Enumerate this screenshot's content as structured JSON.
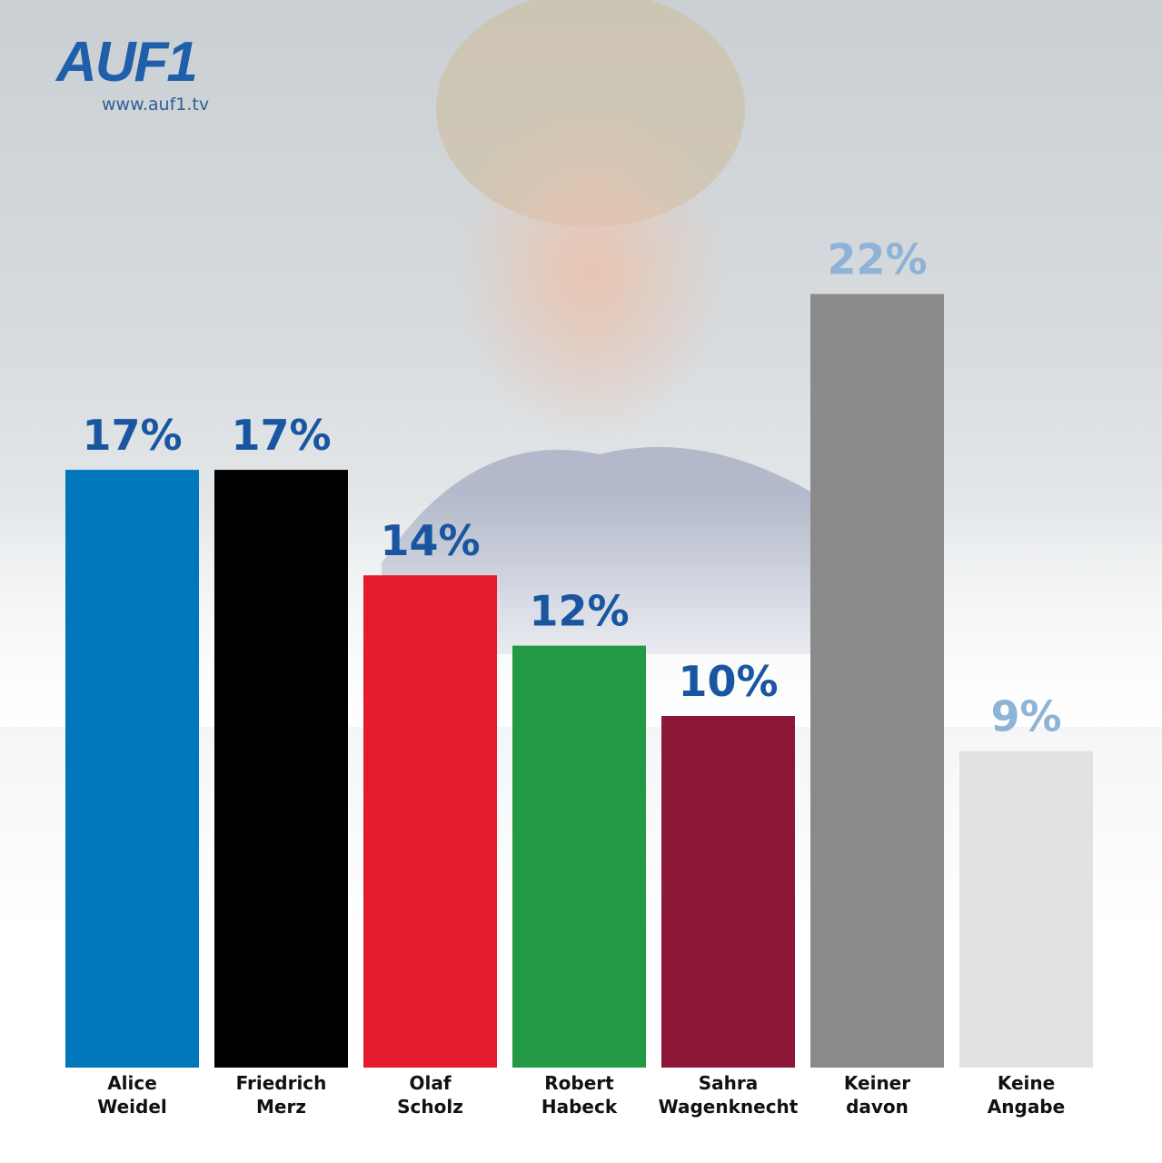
{
  "logo": {
    "brand": "AUF1",
    "url": "www.auf1.tv"
  },
  "chart_data": {
    "type": "bar",
    "categories": [
      [
        "Alice",
        "Weidel"
      ],
      [
        "Friedrich",
        "Merz"
      ],
      [
        "Olaf",
        "Scholz"
      ],
      [
        "Robert",
        "Habeck"
      ],
      [
        "Sahra",
        "Wagenknecht"
      ],
      [
        "Keiner",
        "davon"
      ],
      [
        "Keine",
        "Angabe"
      ]
    ],
    "values": [
      17,
      17,
      14,
      12,
      10,
      22,
      9
    ],
    "data_labels": [
      "17%",
      "17%",
      "14%",
      "12%",
      "10%",
      "22%",
      "9%"
    ],
    "bar_colors": [
      "#0077bb",
      "#000000",
      "#e31b2e",
      "#249a47",
      "#8d1736",
      "#8a8a8a",
      "#e2e2e2"
    ],
    "label_colors": [
      "#1a56a0",
      "#1a56a0",
      "#1a56a0",
      "#1a56a0",
      "#1a56a0",
      "#8fb3d6",
      "#8fb3d6"
    ],
    "title": "",
    "xlabel": "",
    "ylabel": "",
    "ylim": [
      0,
      22
    ],
    "grid": false,
    "legend": "none"
  }
}
